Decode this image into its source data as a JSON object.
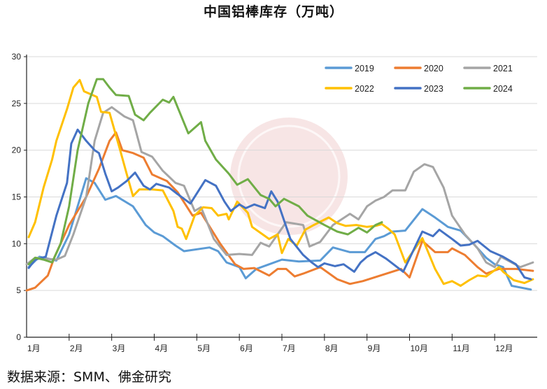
{
  "chart_data": {
    "type": "line",
    "title": "中国铝棒库存（万吨）",
    "xlabel": "",
    "ylabel": "",
    "xlim": [
      1,
      13
    ],
    "ylim": [
      0,
      30
    ],
    "yticks": [
      0,
      5,
      10,
      15,
      20,
      25,
      30
    ],
    "xtick_labels": [
      "1月",
      "2月",
      "3月",
      "4月",
      "5月",
      "6月",
      "7月",
      "8月",
      "9月",
      "10月",
      "11月",
      "12月"
    ],
    "grid": "horizontal",
    "legend_placement": "top-right",
    "series": [
      {
        "name": "2019",
        "color": "#5B9BD5",
        "points": [
          [
            1.05,
            7.5
          ],
          [
            1.3,
            8.6
          ],
          [
            1.7,
            8.2
          ],
          [
            2.0,
            11
          ],
          [
            2.4,
            17
          ],
          [
            2.6,
            16.5
          ],
          [
            2.85,
            14.7
          ],
          [
            3.1,
            15.1
          ],
          [
            3.5,
            14
          ],
          [
            3.8,
            12
          ],
          [
            4.0,
            11.2
          ],
          [
            4.2,
            10.8
          ],
          [
            4.5,
            9.8
          ],
          [
            4.7,
            9.2
          ],
          [
            5.3,
            9.6
          ],
          [
            5.5,
            9.2
          ],
          [
            5.7,
            8
          ],
          [
            6.0,
            7.5
          ],
          [
            6.15,
            6.3
          ],
          [
            6.4,
            7.3
          ],
          [
            7.0,
            8.3
          ],
          [
            7.4,
            8.1
          ],
          [
            7.9,
            8.2
          ],
          [
            8.2,
            9.6
          ],
          [
            8.6,
            9.1
          ],
          [
            8.95,
            9.1
          ],
          [
            9.2,
            10.5
          ],
          [
            9.4,
            10.8
          ],
          [
            9.6,
            11.3
          ],
          [
            9.9,
            11.4
          ],
          [
            10.3,
            13.7
          ],
          [
            10.6,
            12.8
          ],
          [
            10.9,
            11.8
          ],
          [
            11.2,
            11.4
          ],
          [
            11.5,
            10
          ],
          [
            11.8,
            8.5
          ],
          [
            12.0,
            7.8
          ],
          [
            12.2,
            7.5
          ],
          [
            12.4,
            5.5
          ],
          [
            12.85,
            5.1
          ]
        ]
      },
      {
        "name": "2020",
        "color": "#ED7D31",
        "points": [
          [
            1.0,
            5
          ],
          [
            1.2,
            5.3
          ],
          [
            1.5,
            6.6
          ],
          [
            1.65,
            8.5
          ],
          [
            2.0,
            12
          ],
          [
            2.4,
            15
          ],
          [
            2.7,
            18
          ],
          [
            2.95,
            21
          ],
          [
            3.1,
            21.9
          ],
          [
            3.25,
            20
          ],
          [
            3.5,
            19.7
          ],
          [
            3.75,
            19.2
          ],
          [
            3.95,
            17.4
          ],
          [
            4.3,
            16.7
          ],
          [
            4.55,
            15.5
          ],
          [
            4.9,
            13
          ],
          [
            5.1,
            13.3
          ],
          [
            5.55,
            10
          ],
          [
            5.9,
            7.8
          ],
          [
            6.1,
            7.3
          ],
          [
            6.35,
            7.4
          ],
          [
            6.7,
            6.6
          ],
          [
            6.9,
            7.3
          ],
          [
            7.1,
            7.3
          ],
          [
            7.3,
            6.5
          ],
          [
            7.5,
            6.8
          ],
          [
            7.9,
            7.5
          ],
          [
            8.3,
            6.2
          ],
          [
            8.6,
            5.7
          ],
          [
            8.9,
            6.0
          ],
          [
            9.8,
            7.3
          ],
          [
            10.0,
            6.4
          ],
          [
            10.3,
            10.3
          ],
          [
            10.6,
            9.1
          ],
          [
            10.9,
            9.1
          ],
          [
            11.0,
            9.5
          ],
          [
            11.3,
            8.8
          ],
          [
            11.6,
            7.5
          ],
          [
            11.8,
            6.8
          ],
          [
            12.1,
            7.3
          ],
          [
            12.5,
            7.3
          ],
          [
            12.9,
            7.1
          ]
        ]
      },
      {
        "name": "2021",
        "color": "#A5A5A5",
        "points": [
          [
            1.0,
            7.8
          ],
          [
            1.2,
            8.5
          ],
          [
            1.7,
            8.3
          ],
          [
            1.9,
            8.7
          ],
          [
            2.1,
            11
          ],
          [
            2.4,
            15
          ],
          [
            2.6,
            21
          ],
          [
            2.8,
            24
          ],
          [
            3.0,
            24.6
          ],
          [
            3.3,
            23.6
          ],
          [
            3.5,
            23.2
          ],
          [
            3.7,
            19.8
          ],
          [
            3.95,
            19.3
          ],
          [
            4.2,
            17.8
          ],
          [
            4.5,
            16.5
          ],
          [
            4.7,
            16.2
          ],
          [
            4.95,
            13.5
          ],
          [
            5.1,
            13.9
          ],
          [
            5.4,
            10.5
          ],
          [
            5.7,
            8.8
          ],
          [
            6.0,
            8.9
          ],
          [
            6.3,
            8.8
          ],
          [
            6.5,
            10.1
          ],
          [
            6.7,
            9.7
          ],
          [
            6.9,
            11
          ],
          [
            7.1,
            12.3
          ],
          [
            7.5,
            12
          ],
          [
            7.65,
            9.7
          ],
          [
            7.9,
            10.2
          ],
          [
            8.2,
            12
          ],
          [
            8.6,
            13.2
          ],
          [
            8.8,
            12.6
          ],
          [
            9.0,
            14
          ],
          [
            9.2,
            14.6
          ],
          [
            9.4,
            15
          ],
          [
            9.6,
            15.7
          ],
          [
            9.9,
            15.7
          ],
          [
            10.1,
            17.7
          ],
          [
            10.35,
            18.5
          ],
          [
            10.55,
            18.2
          ],
          [
            10.8,
            16
          ],
          [
            11.0,
            13
          ],
          [
            11.3,
            11
          ],
          [
            11.6,
            9.5
          ],
          [
            11.8,
            8
          ],
          [
            12.0,
            7.5
          ],
          [
            12.15,
            8.6
          ],
          [
            12.6,
            7.5
          ],
          [
            12.9,
            8
          ]
        ]
      },
      {
        "name": "2022",
        "color": "#FFC000",
        "points": [
          [
            1.05,
            10.7
          ],
          [
            1.2,
            12.3
          ],
          [
            1.4,
            16
          ],
          [
            1.6,
            19
          ],
          [
            1.7,
            21
          ],
          [
            1.95,
            24.4
          ],
          [
            2.1,
            26.7
          ],
          [
            2.25,
            27.5
          ],
          [
            2.35,
            26.3
          ],
          [
            2.5,
            26
          ],
          [
            2.65,
            25.7
          ],
          [
            2.75,
            24.1
          ],
          [
            2.95,
            24
          ],
          [
            3.2,
            20
          ],
          [
            3.35,
            17.5
          ],
          [
            3.5,
            15.1
          ],
          [
            3.65,
            15.8
          ],
          [
            3.95,
            15.8
          ],
          [
            4.2,
            15.7
          ],
          [
            4.45,
            13.5
          ],
          [
            4.55,
            11.8
          ],
          [
            4.65,
            11.6
          ],
          [
            4.75,
            10.5
          ],
          [
            4.95,
            13
          ],
          [
            5.15,
            13.9
          ],
          [
            5.35,
            13.8
          ],
          [
            5.5,
            13
          ],
          [
            5.7,
            13.2
          ],
          [
            5.75,
            12.6
          ],
          [
            5.95,
            14.5
          ],
          [
            6.2,
            13.3
          ],
          [
            6.3,
            11.8
          ],
          [
            6.7,
            10.5
          ],
          [
            6.9,
            11
          ],
          [
            7.0,
            9
          ],
          [
            7.15,
            10.5
          ],
          [
            7.35,
            9.8
          ],
          [
            7.55,
            11.5
          ],
          [
            7.75,
            12
          ],
          [
            8.1,
            12.8
          ],
          [
            8.3,
            12.2
          ],
          [
            8.5,
            11.9
          ],
          [
            8.75,
            12
          ],
          [
            9.0,
            11.8
          ],
          [
            9.2,
            11.9
          ],
          [
            9.35,
            12.1
          ],
          [
            9.5,
            11.6
          ],
          [
            9.65,
            11
          ],
          [
            9.9,
            8
          ],
          [
            10.1,
            9.3
          ],
          [
            10.3,
            10.6
          ],
          [
            10.6,
            7.3
          ],
          [
            10.8,
            5.7
          ],
          [
            11.0,
            6
          ],
          [
            11.2,
            5.5
          ],
          [
            11.4,
            6.1
          ],
          [
            11.6,
            6.6
          ],
          [
            11.8,
            6.5
          ],
          [
            12.1,
            7.5
          ],
          [
            12.2,
            7
          ],
          [
            12.45,
            6.1
          ],
          [
            12.7,
            5.8
          ],
          [
            12.9,
            6.2
          ]
        ]
      },
      {
        "name": "2023",
        "color": "#4472C4",
        "points": [
          [
            1.05,
            7.4
          ],
          [
            1.2,
            8.3
          ],
          [
            1.45,
            8.6
          ],
          [
            1.7,
            13
          ],
          [
            1.95,
            16.5
          ],
          [
            2.05,
            20.7
          ],
          [
            2.2,
            22.2
          ],
          [
            2.4,
            21
          ],
          [
            2.6,
            20
          ],
          [
            2.7,
            19.7
          ],
          [
            2.85,
            17.5
          ],
          [
            3.0,
            15.6
          ],
          [
            3.15,
            16
          ],
          [
            3.35,
            16.7
          ],
          [
            3.55,
            17.6
          ],
          [
            3.75,
            16.2
          ],
          [
            3.9,
            15.8
          ],
          [
            4.05,
            16.4
          ],
          [
            4.35,
            16
          ],
          [
            4.55,
            15.3
          ],
          [
            4.85,
            14.3
          ],
          [
            5.2,
            16.8
          ],
          [
            5.45,
            16.2
          ],
          [
            5.65,
            14.5
          ],
          [
            5.8,
            13.5
          ],
          [
            6.0,
            14.2
          ],
          [
            6.15,
            13.8
          ],
          [
            6.35,
            14.2
          ],
          [
            6.6,
            13.8
          ],
          [
            6.75,
            15.6
          ],
          [
            6.9,
            14.5
          ],
          [
            7.2,
            10.5
          ],
          [
            7.5,
            8.8
          ],
          [
            7.7,
            8
          ],
          [
            7.85,
            7.5
          ],
          [
            8.0,
            7.9
          ],
          [
            8.25,
            7.6
          ],
          [
            8.45,
            7.8
          ],
          [
            8.7,
            7
          ],
          [
            8.85,
            8
          ],
          [
            9.0,
            8.6
          ],
          [
            9.2,
            9.1
          ],
          [
            9.45,
            8.4
          ],
          [
            9.85,
            7.0
          ],
          [
            10.3,
            11.3
          ],
          [
            10.55,
            10.8
          ],
          [
            10.7,
            11.5
          ],
          [
            11.0,
            10.5
          ],
          [
            11.2,
            9.8
          ],
          [
            11.4,
            9.9
          ],
          [
            11.6,
            10.3
          ],
          [
            11.9,
            9.2
          ],
          [
            12.2,
            8.6
          ],
          [
            12.5,
            7.8
          ],
          [
            12.7,
            6.4
          ],
          [
            12.85,
            6.2
          ]
        ]
      },
      {
        "name": "2024",
        "color": "#70AD47",
        "points": [
          [
            1.05,
            7.8
          ],
          [
            1.2,
            8.5
          ],
          [
            1.4,
            8.3
          ],
          [
            1.6,
            8
          ],
          [
            1.8,
            10
          ],
          [
            2.0,
            14
          ],
          [
            2.2,
            20
          ],
          [
            2.45,
            25
          ],
          [
            2.65,
            27.6
          ],
          [
            2.8,
            27.6
          ],
          [
            2.95,
            26.7
          ],
          [
            3.1,
            25.9
          ],
          [
            3.4,
            25.8
          ],
          [
            3.55,
            23.8
          ],
          [
            3.75,
            23.2
          ],
          [
            3.9,
            24
          ],
          [
            4.2,
            25.4
          ],
          [
            4.35,
            25.1
          ],
          [
            4.45,
            25.7
          ],
          [
            4.8,
            21.8
          ],
          [
            5.1,
            23
          ],
          [
            5.2,
            21
          ],
          [
            5.45,
            19
          ],
          [
            5.75,
            17.5
          ],
          [
            5.95,
            16.3
          ],
          [
            6.2,
            16.9
          ],
          [
            6.5,
            15.2
          ],
          [
            6.7,
            14.8
          ],
          [
            6.85,
            14
          ],
          [
            7.05,
            14.8
          ],
          [
            7.4,
            14
          ],
          [
            7.6,
            13
          ],
          [
            7.8,
            12.5
          ],
          [
            8.0,
            12
          ],
          [
            8.3,
            11.3
          ],
          [
            8.55,
            11
          ],
          [
            8.8,
            11.7
          ],
          [
            9.0,
            11.2
          ],
          [
            9.2,
            12
          ],
          [
            9.35,
            12.3
          ]
        ]
      }
    ]
  },
  "source": "数据来源：SMM、佛金研究",
  "watermark": {
    "color": "#E8B4B4"
  }
}
